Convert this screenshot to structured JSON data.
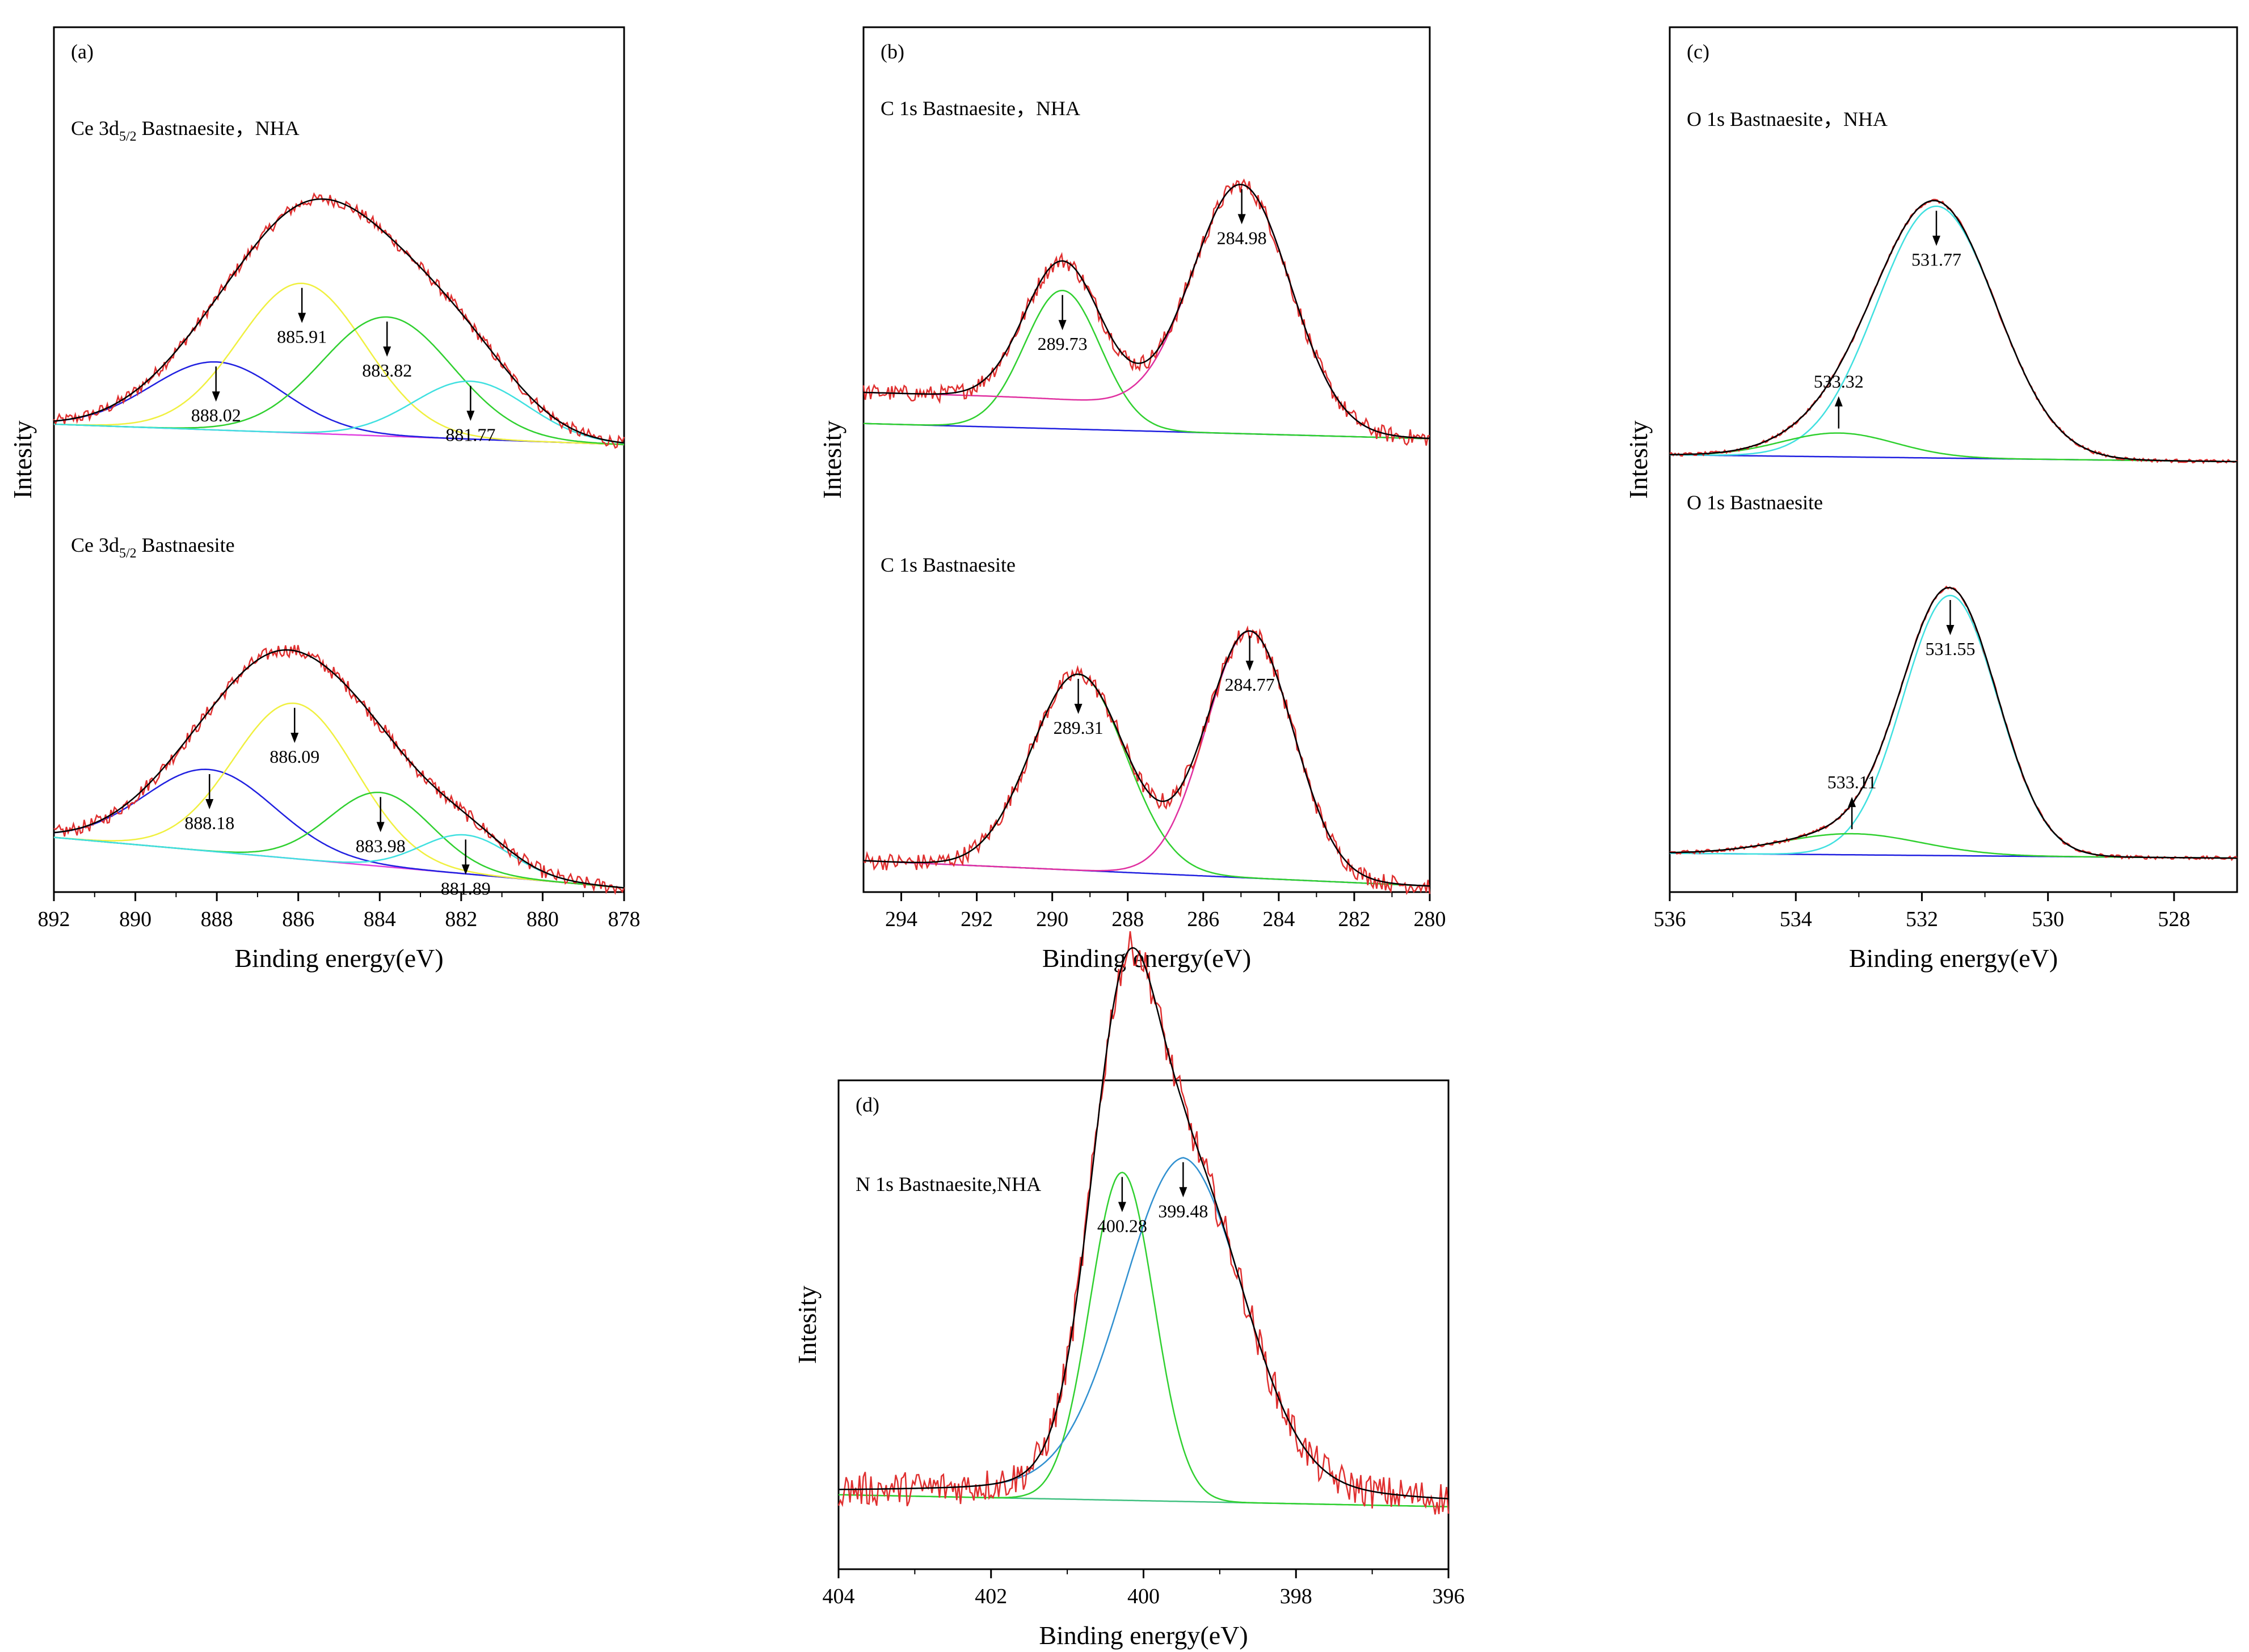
{
  "chart_data": [
    {
      "id": "a",
      "type": "line",
      "panel_label": "(a)",
      "xlabel": "Binding energy(eV)",
      "ylabel": "Intesity",
      "xlim": [
        892,
        878
      ],
      "xticks": [
        892,
        890,
        888,
        886,
        884,
        882,
        880,
        878
      ],
      "xtick_labels": [
        "892",
        "890",
        "888",
        "886",
        "884",
        "882",
        "880",
        "878"
      ],
      "ylim": [
        0,
        100
      ],
      "groups": [
        {
          "title_parts": [
            "Ce 3d",
            "5/2",
            " Bastnaesite，NHA"
          ],
          "baseline": {
            "start": 56,
            "end": 53,
            "color": "#e040e0"
          },
          "envelope_color": "#000000",
          "raw_color": "#e03030",
          "raw_noise": 0.9,
          "peaks": [
            {
              "center": 888.02,
              "label": "888.02",
              "height": 10,
              "sigma": 1.6,
              "color": "#2020e0",
              "arrow": "down"
            },
            {
              "center": 885.91,
              "label": "885.91",
              "height": 22,
              "sigma": 1.55,
              "color": "#f0f040",
              "arrow": "down"
            },
            {
              "center": 883.82,
              "label": "883.82",
              "height": 17.5,
              "sigma": 1.6,
              "color": "#30d030",
              "arrow": "down"
            },
            {
              "center": 881.77,
              "label": "881.77",
              "height": 8.5,
              "sigma": 1.4,
              "color": "#40e0e0",
              "arrow": "down"
            }
          ]
        },
        {
          "title_parts": [
            "Ce 3d",
            "5/2",
            " Bastnaesite"
          ],
          "baseline": {
            "start": 8,
            "end": 1.5,
            "color": "#e040e0"
          },
          "envelope_color": "#000000",
          "raw_color": "#e03030",
          "raw_noise": 0.9,
          "peaks": [
            {
              "center": 888.18,
              "label": "888.18",
              "height": 10.5,
              "sigma": 1.6,
              "color": "#2020e0",
              "arrow": "down"
            },
            {
              "center": 886.09,
              "label": "886.09",
              "height": 20,
              "sigma": 1.5,
              "color": "#f0f040",
              "arrow": "down"
            },
            {
              "center": 883.98,
              "label": "883.98",
              "height": 9.5,
              "sigma": 1.25,
              "color": "#30d030",
              "arrow": "down"
            },
            {
              "center": 881.89,
              "label": "881.89",
              "height": 5,
              "sigma": 1.1,
              "color": "#40e0e0",
              "arrow": "down"
            }
          ]
        }
      ]
    },
    {
      "id": "b",
      "type": "line",
      "panel_label": "(b)",
      "xlabel": "Binding energy(eV)",
      "ylabel": "Intesity",
      "xlim": [
        295,
        280
      ],
      "xticks": [
        294,
        292,
        290,
        288,
        286,
        284,
        282,
        280
      ],
      "xtick_labels": [
        "294",
        "292",
        "290",
        "288",
        "286",
        "284",
        "282",
        "280"
      ],
      "ylim": [
        0,
        100
      ],
      "groups": [
        {
          "title_parts": [
            "C 1s Bastnaesite，NHA"
          ],
          "baseline": {
            "start": 57,
            "end": 54.8,
            "color": "#2020e0"
          },
          "envelope_color": "#000000",
          "raw_color": "#e03030",
          "raw_noise": 1.2,
          "peaks": [
            {
              "center": 289.73,
              "label": "289.73",
              "height": 20,
              "sigma": 1.0,
              "color": "#30d030",
              "arrow": "down"
            },
            {
              "center": 284.98,
              "label": "284.98",
              "height": 35,
              "sigma": 1.3,
              "color": "#e030a0",
              "arrow": "down",
              "tail": 4.5
            },
            {
              "center": 288.5,
              "label": "",
              "height": 0,
              "sigma": 1.0,
              "color": "#e030a0",
              "arrow": "none"
            }
          ]
        },
        {
          "title_parts": [
            "C 1s Bastnaesite"
          ],
          "baseline": {
            "start": 3.5,
            "end": 0,
            "color": "#2020e0"
          },
          "envelope_color": "#000000",
          "raw_color": "#e03030",
          "raw_noise": 1.2,
          "peaks": [
            {
              "center": 289.31,
              "label": "289.31",
              "height": 27,
              "sigma": 1.25,
              "color": "#30d030",
              "arrow": "down"
            },
            {
              "center": 284.77,
              "label": "284.77",
              "height": 34,
              "sigma": 1.15,
              "color": "#e030a0",
              "arrow": "down"
            }
          ]
        }
      ]
    },
    {
      "id": "c",
      "type": "line",
      "panel_label": "(c)",
      "xlabel": "Binding energy(eV)",
      "ylabel": "Intesity",
      "xlim": [
        536,
        527
      ],
      "xticks": [
        536,
        534,
        532,
        530,
        528
      ],
      "xtick_labels": [
        "536",
        "534",
        "532",
        "530",
        "528"
      ],
      "ylim": [
        0,
        100
      ],
      "groups": [
        {
          "title_parts": [
            "O 1s Bastnaesite，NHA"
          ],
          "baseline": {
            "start": 56,
            "end": 55,
            "color": "#2020e0"
          },
          "envelope_color": "#000000",
          "raw_color": "#e03030",
          "raw_noise": 0.25,
          "peaks": [
            {
              "center": 531.77,
              "label": "531.77",
              "height": 37,
              "sigma": 0.95,
              "color": "#40e0e0",
              "arrow": "down"
            },
            {
              "center": 533.32,
              "label": "533.32",
              "height": 3.5,
              "sigma": 0.9,
              "color": "#30d030",
              "arrow": "up"
            }
          ]
        },
        {
          "title_parts": [
            "O 1s Bastnaesite"
          ],
          "baseline": {
            "start": 5.5,
            "end": 4.8,
            "color": "#2020e0"
          },
          "envelope_color": "#000000",
          "raw_color": "#e03030",
          "raw_noise": 0.25,
          "peaks": [
            {
              "center": 531.55,
              "label": "531.55",
              "height": 37,
              "sigma": 0.75,
              "color": "#40e0e0",
              "arrow": "down"
            },
            {
              "center": 533.11,
              "label": "533.11",
              "height": 3,
              "sigma": 1.1,
              "color": "#30d030",
              "arrow": "up"
            }
          ]
        }
      ]
    },
    {
      "id": "d",
      "type": "line",
      "panel_label": "(d)",
      "xlabel": "Binding energy(eV)",
      "ylabel": "Intesity",
      "xlim": [
        404,
        396
      ],
      "xticks": [
        404,
        402,
        400,
        398,
        396
      ],
      "xtick_labels": [
        "404",
        "402",
        "400",
        "398",
        "396"
      ],
      "ylim": [
        0,
        100
      ],
      "groups": [
        {
          "title_parts": [
            "N 1s Bastnaesite,NHA"
          ],
          "baseline": {
            "start": 13.5,
            "end": 12,
            "color": "#40c080"
          },
          "envelope_color": "#000000",
          "raw_color": "#e03030",
          "raw_noise": 2.2,
          "peaks": [
            {
              "center": 400.28,
              "label": "400.28",
              "height": 41,
              "sigma": 0.42,
              "color": "#30d030",
              "arrow": "down"
            },
            {
              "center": 399.48,
              "label": "399.48",
              "height": 39,
              "sigma": 0.78,
              "color": "#3090d0",
              "arrow": "down",
              "wing": 4
            }
          ]
        }
      ]
    }
  ]
}
